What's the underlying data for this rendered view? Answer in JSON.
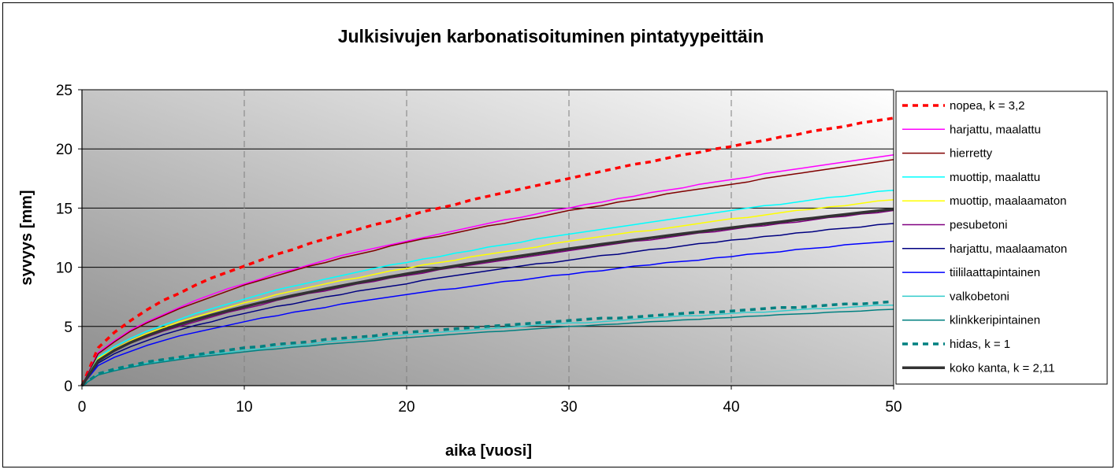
{
  "chart_data": {
    "type": "line",
    "title": "Julkisivujen karbonatisoituminen pintatyypeittäin",
    "xlabel": "aika [vuosi]",
    "ylabel": "syvyys [mm]",
    "xlim": [
      0,
      50
    ],
    "ylim": [
      0,
      25
    ],
    "x_ticks": [
      0,
      10,
      20,
      30,
      40,
      50
    ],
    "y_ticks": [
      0,
      5,
      10,
      15,
      20,
      25
    ],
    "vertical_grid": "dashed",
    "horizontal_grid": "solid",
    "legend_position": "right",
    "background": "gray-gradient",
    "x": [
      0,
      1,
      2,
      3,
      4,
      5,
      6,
      7,
      8,
      9,
      10,
      11,
      12,
      13,
      14,
      15,
      16,
      17,
      18,
      19,
      20,
      21,
      22,
      23,
      24,
      25,
      26,
      27,
      28,
      29,
      30,
      31,
      32,
      33,
      34,
      35,
      36,
      37,
      38,
      39,
      40,
      41,
      42,
      43,
      44,
      45,
      46,
      47,
      48,
      49,
      50
    ],
    "series": [
      {
        "name": "nopea, k = 3,2",
        "color": "#ff0000",
        "dash": "dashed",
        "width": 3.5,
        "values": [
          0,
          3.2,
          4.5,
          5.5,
          6.4,
          7.2,
          7.8,
          8.5,
          9.1,
          9.6,
          10.1,
          10.6,
          11.1,
          11.5,
          12.0,
          12.4,
          12.8,
          13.2,
          13.6,
          13.9,
          14.3,
          14.7,
          15.0,
          15.3,
          15.7,
          16.0,
          16.3,
          16.6,
          16.9,
          17.2,
          17.5,
          17.8,
          18.1,
          18.4,
          18.7,
          18.9,
          19.2,
          19.5,
          19.7,
          20.0,
          20.2,
          20.5,
          20.7,
          21.0,
          21.2,
          21.5,
          21.7,
          21.9,
          22.2,
          22.4,
          22.6
        ]
      },
      {
        "name": "harjattu, maalattu",
        "color": "#ff00ff",
        "dash": "solid",
        "width": 1.5,
        "values": [
          0,
          2.8,
          3.8,
          4.7,
          5.4,
          6.0,
          6.6,
          7.2,
          7.7,
          8.2,
          8.6,
          9.0,
          9.5,
          9.8,
          10.2,
          10.6,
          11.0,
          11.3,
          11.6,
          11.9,
          12.2,
          12.5,
          12.8,
          13.1,
          13.4,
          13.7,
          14.0,
          14.2,
          14.5,
          14.8,
          15.0,
          15.3,
          15.5,
          15.8,
          16.0,
          16.3,
          16.5,
          16.7,
          17.0,
          17.2,
          17.4,
          17.6,
          17.9,
          18.1,
          18.3,
          18.5,
          18.7,
          18.9,
          19.1,
          19.3,
          19.5
        ]
      },
      {
        "name": "hierretty",
        "color": "#800000",
        "dash": "solid",
        "width": 1.5,
        "values": [
          0,
          2.7,
          3.7,
          4.6,
          5.3,
          5.9,
          6.5,
          7.0,
          7.5,
          8.0,
          8.5,
          8.9,
          9.3,
          9.7,
          10.1,
          10.4,
          10.8,
          11.1,
          11.4,
          11.8,
          12.1,
          12.4,
          12.6,
          12.9,
          13.2,
          13.5,
          13.7,
          14.0,
          14.2,
          14.5,
          14.8,
          15.0,
          15.2,
          15.5,
          15.7,
          15.9,
          16.2,
          16.4,
          16.6,
          16.8,
          17.0,
          17.2,
          17.5,
          17.7,
          17.9,
          18.1,
          18.3,
          18.5,
          18.7,
          18.9,
          19.1
        ]
      },
      {
        "name": "muottip, maalattu",
        "color": "#00ffff",
        "dash": "solid",
        "width": 1.5,
        "values": [
          0,
          2.4,
          3.3,
          4.0,
          4.6,
          5.1,
          5.6,
          6.1,
          6.5,
          6.9,
          7.3,
          7.7,
          8.1,
          8.4,
          8.7,
          9.0,
          9.3,
          9.6,
          9.9,
          10.2,
          10.4,
          10.7,
          10.9,
          11.2,
          11.4,
          11.7,
          11.9,
          12.1,
          12.4,
          12.6,
          12.8,
          13.0,
          13.2,
          13.4,
          13.6,
          13.8,
          14.0,
          14.2,
          14.4,
          14.6,
          14.8,
          15.0,
          15.2,
          15.3,
          15.5,
          15.7,
          15.9,
          16.0,
          16.2,
          16.4,
          16.5
        ]
      },
      {
        "name": "muottip, maalaamaton",
        "color": "#ffff00",
        "dash": "solid",
        "width": 1.5,
        "values": [
          0,
          2.3,
          3.1,
          3.8,
          4.4,
          4.9,
          5.4,
          5.8,
          6.2,
          6.6,
          7.0,
          7.3,
          7.7,
          8.0,
          8.3,
          8.6,
          8.9,
          9.1,
          9.4,
          9.7,
          9.9,
          10.2,
          10.4,
          10.6,
          10.9,
          11.1,
          11.3,
          11.5,
          11.7,
          12.0,
          12.2,
          12.4,
          12.6,
          12.8,
          13.0,
          13.1,
          13.3,
          13.5,
          13.7,
          13.9,
          14.1,
          14.2,
          14.4,
          14.6,
          14.8,
          14.9,
          15.1,
          15.2,
          15.4,
          15.6,
          15.7
        ]
      },
      {
        "name": "pesubetoni",
        "color": "#800080",
        "dash": "solid",
        "width": 1.5,
        "values": [
          0,
          2.1,
          2.9,
          3.6,
          4.1,
          4.6,
          5.0,
          5.4,
          5.8,
          6.2,
          6.5,
          6.8,
          7.2,
          7.5,
          7.8,
          8.0,
          8.3,
          8.6,
          8.8,
          9.1,
          9.3,
          9.5,
          9.8,
          10.0,
          10.2,
          10.4,
          10.6,
          10.8,
          11.0,
          11.2,
          11.4,
          11.6,
          11.8,
          12.0,
          12.2,
          12.3,
          12.5,
          12.7,
          12.9,
          13.0,
          13.2,
          13.4,
          13.5,
          13.7,
          13.8,
          14.0,
          14.2,
          14.3,
          14.5,
          14.6,
          14.8
        ]
      },
      {
        "name": "harjattu, maalaamaton",
        "color": "#000080",
        "dash": "solid",
        "width": 1.5,
        "values": [
          0,
          1.9,
          2.7,
          3.3,
          3.8,
          4.3,
          4.7,
          5.1,
          5.4,
          5.8,
          6.1,
          6.4,
          6.7,
          6.9,
          7.2,
          7.5,
          7.7,
          8.0,
          8.2,
          8.4,
          8.6,
          8.9,
          9.1,
          9.3,
          9.5,
          9.7,
          9.9,
          10.1,
          10.3,
          10.4,
          10.6,
          10.8,
          11.0,
          11.1,
          11.3,
          11.5,
          11.6,
          11.8,
          12.0,
          12.1,
          12.3,
          12.4,
          12.6,
          12.7,
          12.9,
          13.0,
          13.2,
          13.3,
          13.4,
          13.6,
          13.7
        ]
      },
      {
        "name": "tiililaattapintainen",
        "color": "#0000ff",
        "dash": "solid",
        "width": 1.5,
        "values": [
          0,
          1.7,
          2.4,
          2.9,
          3.4,
          3.8,
          4.2,
          4.5,
          4.8,
          5.1,
          5.4,
          5.7,
          5.9,
          6.2,
          6.4,
          6.6,
          6.9,
          7.1,
          7.3,
          7.5,
          7.7,
          7.9,
          8.1,
          8.2,
          8.4,
          8.6,
          8.8,
          8.9,
          9.1,
          9.3,
          9.4,
          9.6,
          9.7,
          9.9,
          10.1,
          10.2,
          10.4,
          10.5,
          10.6,
          10.8,
          10.9,
          11.1,
          11.2,
          11.3,
          11.5,
          11.6,
          11.7,
          11.9,
          12.0,
          12.1,
          12.2
        ]
      },
      {
        "name": "valkobetoni",
        "color": "#33cccc",
        "dash": "solid",
        "width": 1.5,
        "values": [
          0,
          0.95,
          1.3,
          1.6,
          1.9,
          2.1,
          2.3,
          2.5,
          2.7,
          2.8,
          3.0,
          3.1,
          3.3,
          3.4,
          3.5,
          3.7,
          3.8,
          3.9,
          4.0,
          4.2,
          4.3,
          4.4,
          4.5,
          4.6,
          4.7,
          4.8,
          4.9,
          5.0,
          5.1,
          5.2,
          5.3,
          5.3,
          5.4,
          5.5,
          5.6,
          5.7,
          5.8,
          5.9,
          5.9,
          6.0,
          6.1,
          6.2,
          6.2,
          6.3,
          6.4,
          6.5,
          6.5,
          6.6,
          6.7,
          6.8,
          6.8
        ]
      },
      {
        "name": "klinkkeripintainen",
        "color": "#008080",
        "dash": "solid",
        "width": 1.5,
        "values": [
          0,
          0.9,
          1.25,
          1.55,
          1.8,
          2.0,
          2.2,
          2.4,
          2.55,
          2.7,
          2.85,
          3.0,
          3.1,
          3.25,
          3.35,
          3.5,
          3.6,
          3.7,
          3.8,
          3.95,
          4.05,
          4.15,
          4.25,
          4.35,
          4.45,
          4.55,
          4.6,
          4.7,
          4.8,
          4.9,
          5.0,
          5.05,
          5.15,
          5.2,
          5.3,
          5.4,
          5.45,
          5.55,
          5.6,
          5.7,
          5.75,
          5.85,
          5.9,
          6.0,
          6.05,
          6.1,
          6.2,
          6.25,
          6.3,
          6.4,
          6.45
        ]
      },
      {
        "name": "hidas, k = 1",
        "color": "#008080",
        "dash": "dashed",
        "width": 3.5,
        "values": [
          0,
          1.0,
          1.4,
          1.7,
          2.0,
          2.2,
          2.4,
          2.6,
          2.8,
          3.0,
          3.2,
          3.3,
          3.5,
          3.6,
          3.7,
          3.9,
          4.0,
          4.1,
          4.2,
          4.4,
          4.5,
          4.6,
          4.7,
          4.8,
          4.9,
          5.0,
          5.1,
          5.2,
          5.3,
          5.4,
          5.5,
          5.6,
          5.7,
          5.7,
          5.8,
          5.9,
          6.0,
          6.1,
          6.2,
          6.2,
          6.3,
          6.4,
          6.5,
          6.6,
          6.6,
          6.7,
          6.8,
          6.9,
          6.9,
          7.0,
          7.1
        ]
      },
      {
        "name": "koko kanta, k = 2,11",
        "color": "#333333",
        "dash": "solid",
        "width": 3.5,
        "values": [
          0,
          2.11,
          2.98,
          3.65,
          4.22,
          4.72,
          5.17,
          5.58,
          5.97,
          6.33,
          6.67,
          7.0,
          7.31,
          7.61,
          7.89,
          8.17,
          8.44,
          8.7,
          8.95,
          9.2,
          9.44,
          9.67,
          9.9,
          10.12,
          10.34,
          10.55,
          10.76,
          10.96,
          11.16,
          11.36,
          11.56,
          11.75,
          11.94,
          12.12,
          12.3,
          12.48,
          12.66,
          12.83,
          13.0,
          13.18,
          13.34,
          13.51,
          13.67,
          13.83,
          14.0,
          14.15,
          14.31,
          14.46,
          14.62,
          14.77,
          14.92
        ]
      }
    ]
  }
}
